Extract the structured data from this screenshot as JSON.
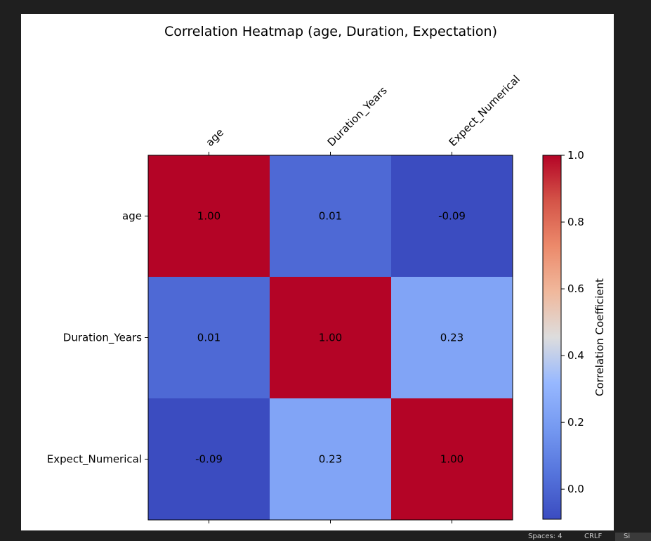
{
  "chart_data": {
    "type": "heatmap",
    "title": "Correlation Heatmap (age, Duration, Expectation)",
    "rows": [
      "age",
      "Duration_Years",
      "Expect_Numerical"
    ],
    "columns": [
      "age",
      "Duration_Years",
      "Expect_Numerical"
    ],
    "values": [
      [
        1.0,
        0.01,
        -0.09
      ],
      [
        0.01,
        1.0,
        0.23
      ],
      [
        -0.09,
        0.23,
        1.0
      ]
    ],
    "cell_labels": [
      [
        "1.00",
        "0.01",
        "-0.09"
      ],
      [
        "0.01",
        "1.00",
        "0.23"
      ],
      [
        "-0.09",
        "0.23",
        "1.00"
      ]
    ],
    "colormap": "coolwarm",
    "colorbar": {
      "label": "Correlation Coefficient",
      "range": [
        -0.09,
        1.0
      ],
      "ticks": [
        0.0,
        0.2,
        0.4,
        0.6,
        0.8,
        1.0
      ],
      "tick_labels": [
        "0.0",
        "0.2",
        "0.4",
        "0.6",
        "0.8",
        "1.0"
      ]
    },
    "grid": false
  },
  "status_bar": {
    "spaces": "Spaces: 4",
    "eol": "CRLF",
    "sig": "Si"
  }
}
